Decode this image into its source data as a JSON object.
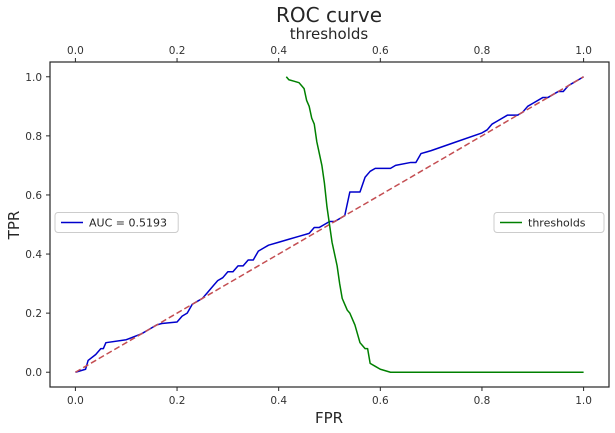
{
  "chart_data": {
    "type": "line",
    "title": "ROC curve",
    "xlabel": "FPR",
    "ylabel": "TPR",
    "x2label": "thresholds",
    "xlim": [
      -0.05,
      1.05
    ],
    "ylim": [
      -0.05,
      1.05
    ],
    "x2lim": [
      -0.05,
      1.05
    ],
    "xticks": [
      "0.0",
      "0.2",
      "0.4",
      "0.6",
      "0.8",
      "1.0"
    ],
    "yticks": [
      "0.0",
      "0.2",
      "0.4",
      "0.6",
      "0.8",
      "1.0"
    ],
    "x2ticks": [
      "0.0",
      "0.2",
      "0.4",
      "0.6",
      "0.8",
      "1.0"
    ],
    "grid": false,
    "series": [
      {
        "name": "AUC = 0.5193",
        "color": "#0000cc",
        "style": "solid",
        "axis": "primary",
        "legend": "center-left",
        "x": [
          0.0,
          0.02,
          0.025,
          0.04,
          0.05,
          0.055,
          0.06,
          0.1,
          0.13,
          0.14,
          0.15,
          0.16,
          0.17,
          0.2,
          0.21,
          0.22,
          0.23,
          0.24,
          0.25,
          0.26,
          0.27,
          0.28,
          0.29,
          0.3,
          0.31,
          0.32,
          0.33,
          0.34,
          0.35,
          0.36,
          0.37,
          0.38,
          0.4,
          0.42,
          0.44,
          0.46,
          0.47,
          0.48,
          0.49,
          0.5,
          0.51,
          0.52,
          0.53,
          0.54,
          0.55,
          0.56,
          0.57,
          0.58,
          0.59,
          0.6,
          0.62,
          0.63,
          0.66,
          0.67,
          0.68,
          0.69,
          0.7,
          0.75,
          0.8,
          0.81,
          0.82,
          0.83,
          0.85,
          0.87,
          0.88,
          0.89,
          0.9,
          0.92,
          0.93,
          0.95,
          0.96,
          0.97,
          0.98,
          0.99,
          1.0
        ],
        "y": [
          0.0,
          0.01,
          0.04,
          0.06,
          0.08,
          0.08,
          0.1,
          0.11,
          0.13,
          0.14,
          0.15,
          0.16,
          0.165,
          0.17,
          0.19,
          0.2,
          0.23,
          0.24,
          0.25,
          0.27,
          0.29,
          0.31,
          0.32,
          0.34,
          0.34,
          0.36,
          0.36,
          0.38,
          0.38,
          0.41,
          0.42,
          0.43,
          0.44,
          0.45,
          0.46,
          0.47,
          0.49,
          0.49,
          0.5,
          0.51,
          0.51,
          0.52,
          0.53,
          0.61,
          0.61,
          0.61,
          0.66,
          0.68,
          0.69,
          0.69,
          0.69,
          0.7,
          0.71,
          0.71,
          0.74,
          0.745,
          0.75,
          0.78,
          0.81,
          0.82,
          0.84,
          0.85,
          0.87,
          0.87,
          0.88,
          0.9,
          0.91,
          0.93,
          0.93,
          0.95,
          0.95,
          0.97,
          0.98,
          0.99,
          1.0
        ]
      },
      {
        "name": "",
        "color": "#c44e52",
        "style": "dashed",
        "axis": "primary",
        "x": [
          0.0,
          1.0
        ],
        "y": [
          0.0,
          1.0
        ]
      },
      {
        "name": "thresholds",
        "color": "#008000",
        "style": "solid",
        "axis": "secondary",
        "legend": "center-right",
        "x": [
          0.415,
          0.42,
          0.43,
          0.44,
          0.445,
          0.45,
          0.455,
          0.46,
          0.465,
          0.47,
          0.475,
          0.48,
          0.485,
          0.49,
          0.495,
          0.5,
          0.505,
          0.51,
          0.515,
          0.52,
          0.525,
          0.53,
          0.535,
          0.54,
          0.545,
          0.55,
          0.555,
          0.56,
          0.565,
          0.57,
          0.575,
          0.58,
          0.59,
          0.6,
          0.62,
          0.65,
          0.7,
          0.8,
          0.9,
          1.0
        ],
        "y": [
          1.0,
          0.99,
          0.985,
          0.98,
          0.97,
          0.96,
          0.92,
          0.9,
          0.86,
          0.84,
          0.78,
          0.74,
          0.7,
          0.64,
          0.56,
          0.5,
          0.44,
          0.4,
          0.36,
          0.3,
          0.25,
          0.23,
          0.21,
          0.2,
          0.18,
          0.16,
          0.13,
          0.1,
          0.09,
          0.08,
          0.08,
          0.03,
          0.02,
          0.01,
          0.0,
          0.0,
          0.0,
          0.0,
          0.0,
          0.0
        ]
      }
    ]
  }
}
